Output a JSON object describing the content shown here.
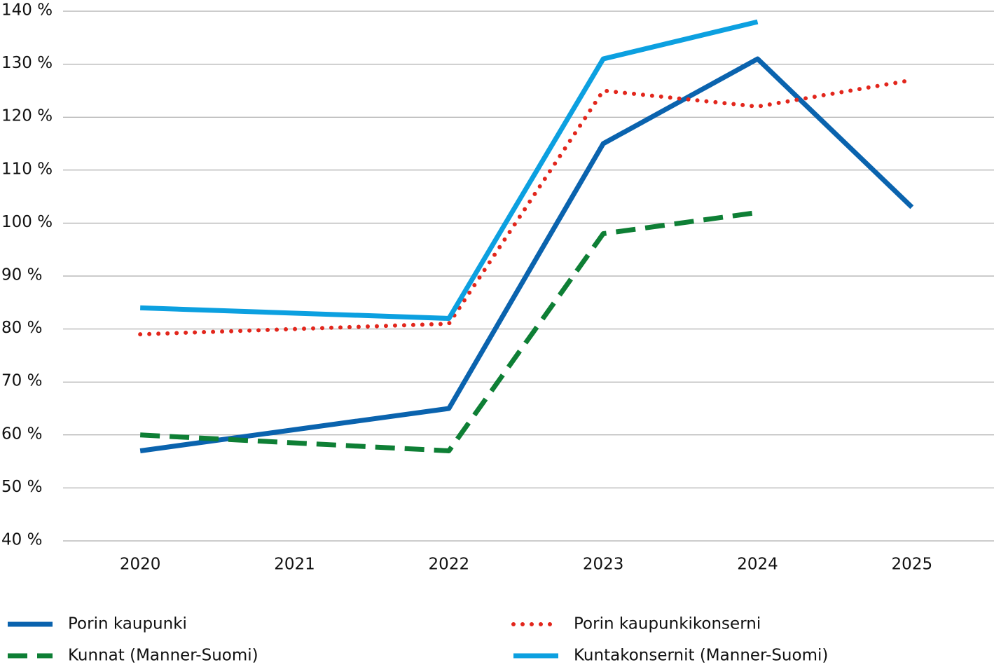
{
  "chart_data": {
    "type": "line",
    "xticks": [
      2020,
      2021,
      2022,
      2023,
      2024,
      2025
    ],
    "xlim": [
      2019.5,
      2025.5
    ],
    "ylim": [
      40,
      140
    ],
    "yticks": [
      {
        "value": 40,
        "label": "40 %"
      },
      {
        "value": 50,
        "label": "50 %"
      },
      {
        "value": 60,
        "label": "60 %"
      },
      {
        "value": 70,
        "label": "70 %"
      },
      {
        "value": 80,
        "label": "80 %"
      },
      {
        "value": 90,
        "label": "90 %"
      },
      {
        "value": 100,
        "label": "100 %"
      },
      {
        "value": 110,
        "label": "110 %"
      },
      {
        "value": 120,
        "label": "120 %"
      },
      {
        "value": 130,
        "label": "130 %"
      },
      {
        "value": 140,
        "label": "140 %"
      }
    ],
    "grid": true,
    "legend": "bottom",
    "series": [
      {
        "name": "Porin kaupunki",
        "color": "#0a63ae",
        "dash": "solid",
        "x": [
          2020,
          2022,
          2023,
          2024,
          2025
        ],
        "values": [
          57,
          65,
          115,
          131,
          103
        ]
      },
      {
        "name": "Porin kaupunkikonserni",
        "color": "#e2261c",
        "dash": "dotted",
        "x": [
          2020,
          2022,
          2023,
          2024,
          2025
        ],
        "values": [
          79,
          81,
          125,
          122,
          127
        ]
      },
      {
        "name": "Kunnat (Manner-Suomi)",
        "color": "#0e7f35",
        "dash": "dashed",
        "x": [
          2020,
          2022,
          2023,
          2024
        ],
        "values": [
          60,
          57,
          98,
          102
        ]
      },
      {
        "name": "Kuntakonsernit (Manner-Suomi)",
        "color": "#0ca0e0",
        "dash": "solid",
        "x": [
          2020,
          2022,
          2023,
          2024
        ],
        "values": [
          84,
          82,
          131,
          138
        ]
      }
    ]
  }
}
